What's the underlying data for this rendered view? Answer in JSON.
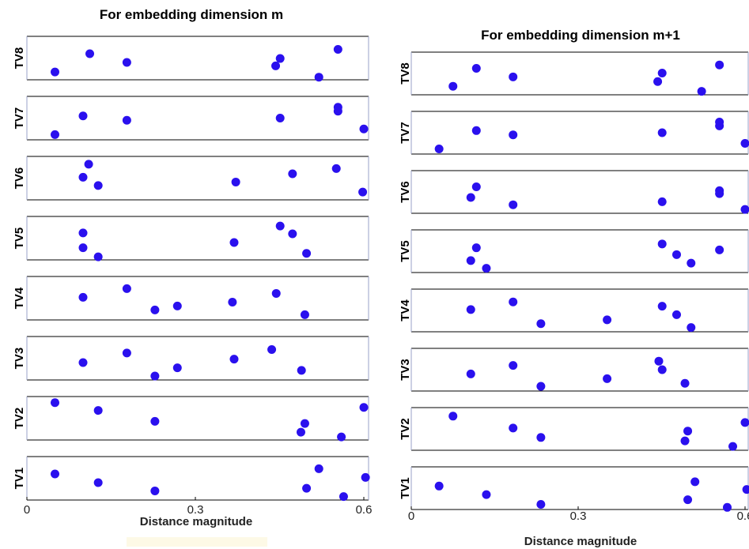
{
  "chart_data": [
    {
      "type": "scatter",
      "title": "For embedding dimension m",
      "xlabel": "Distance magnitude",
      "xlim": [
        0,
        0.6
      ],
      "xticks": [
        {
          "value": 0,
          "label": "0"
        },
        {
          "value": 0.3,
          "label": "0.3"
        },
        {
          "value": 0.6,
          "label": "0.6"
        }
      ],
      "rows": [
        {
          "name": "TV8",
          "points": [
            [
              0.05,
              0.18
            ],
            [
              0.112,
              0.6
            ],
            [
              0.178,
              0.4
            ],
            [
              0.443,
              0.32
            ],
            [
              0.451,
              0.49
            ],
            [
              0.52,
              0.06
            ],
            [
              0.554,
              0.7
            ]
          ]
        },
        {
          "name": "TV7",
          "points": [
            [
              0.05,
              0.12
            ],
            [
              0.1,
              0.55
            ],
            [
              0.178,
              0.45
            ],
            [
              0.451,
              0.5
            ],
            [
              0.554,
              0.75
            ],
            [
              0.554,
              0.66
            ],
            [
              0.6,
              0.25
            ]
          ]
        },
        {
          "name": "TV6",
          "points": [
            [
              0.1,
              0.52
            ],
            [
              0.11,
              0.82
            ],
            [
              0.127,
              0.33
            ],
            [
              0.372,
              0.41
            ],
            [
              0.473,
              0.6
            ],
            [
              0.551,
              0.72
            ],
            [
              0.598,
              0.18
            ]
          ]
        },
        {
          "name": "TV5",
          "points": [
            [
              0.1,
              0.28
            ],
            [
              0.1,
              0.62
            ],
            [
              0.127,
              0.07
            ],
            [
              0.369,
              0.4
            ],
            [
              0.451,
              0.78
            ],
            [
              0.473,
              0.6
            ],
            [
              0.498,
              0.15
            ]
          ]
        },
        {
          "name": "TV4",
          "points": [
            [
              0.1,
              0.52
            ],
            [
              0.178,
              0.72
            ],
            [
              0.228,
              0.23
            ],
            [
              0.268,
              0.32
            ],
            [
              0.366,
              0.41
            ],
            [
              0.444,
              0.61
            ],
            [
              0.495,
              0.12
            ]
          ]
        },
        {
          "name": "TV3",
          "points": [
            [
              0.1,
              0.4
            ],
            [
              0.178,
              0.62
            ],
            [
              0.228,
              0.09
            ],
            [
              0.268,
              0.28
            ],
            [
              0.369,
              0.48
            ],
            [
              0.436,
              0.7
            ],
            [
              0.489,
              0.22
            ]
          ]
        },
        {
          "name": "TV2",
          "points": [
            [
              0.05,
              0.86
            ],
            [
              0.127,
              0.68
            ],
            [
              0.228,
              0.43
            ],
            [
              0.495,
              0.38
            ],
            [
              0.488,
              0.18
            ],
            [
              0.56,
              0.07
            ],
            [
              0.6,
              0.75
            ]
          ]
        },
        {
          "name": "TV1",
          "points": [
            [
              0.05,
              0.6
            ],
            [
              0.127,
              0.4
            ],
            [
              0.228,
              0.21
            ],
            [
              0.52,
              0.72
            ],
            [
              0.498,
              0.27
            ],
            [
              0.603,
              0.52
            ],
            [
              0.564,
              0.08
            ]
          ]
        }
      ]
    },
    {
      "type": "scatter",
      "title": "For embedding dimension m+1",
      "xlabel": "Distance magnitude",
      "xlim": [
        0,
        0.6
      ],
      "xticks": [
        {
          "value": 0,
          "label": "0"
        },
        {
          "value": 0.3,
          "label": "0.3"
        },
        {
          "value": 0.6,
          "label": "0.6"
        }
      ],
      "rows": [
        {
          "name": "TV8",
          "points": [
            [
              0.075,
              0.2
            ],
            [
              0.117,
              0.62
            ],
            [
              0.183,
              0.42
            ],
            [
              0.443,
              0.31
            ],
            [
              0.451,
              0.51
            ],
            [
              0.522,
              0.08
            ],
            [
              0.554,
              0.7
            ]
          ]
        },
        {
          "name": "TV7",
          "points": [
            [
              0.05,
              0.12
            ],
            [
              0.117,
              0.55
            ],
            [
              0.183,
              0.45
            ],
            [
              0.451,
              0.5
            ],
            [
              0.554,
              0.75
            ],
            [
              0.554,
              0.66
            ],
            [
              0.6,
              0.25
            ]
          ]
        },
        {
          "name": "TV6",
          "points": [
            [
              0.107,
              0.37
            ],
            [
              0.117,
              0.62
            ],
            [
              0.183,
              0.2
            ],
            [
              0.451,
              0.27
            ],
            [
              0.554,
              0.53
            ],
            [
              0.554,
              0.46
            ],
            [
              0.6,
              0.09
            ]
          ]
        },
        {
          "name": "TV5",
          "points": [
            [
              0.107,
              0.28
            ],
            [
              0.117,
              0.58
            ],
            [
              0.135,
              0.1
            ],
            [
              0.451,
              0.67
            ],
            [
              0.477,
              0.42
            ],
            [
              0.503,
              0.22
            ],
            [
              0.554,
              0.53
            ]
          ]
        },
        {
          "name": "TV4",
          "points": [
            [
              0.107,
              0.52
            ],
            [
              0.183,
              0.7
            ],
            [
              0.233,
              0.19
            ],
            [
              0.352,
              0.28
            ],
            [
              0.451,
              0.6
            ],
            [
              0.477,
              0.4
            ],
            [
              0.503,
              0.1
            ]
          ]
        },
        {
          "name": "TV3",
          "points": [
            [
              0.107,
              0.4
            ],
            [
              0.183,
              0.6
            ],
            [
              0.233,
              0.11
            ],
            [
              0.352,
              0.29
            ],
            [
              0.445,
              0.7
            ],
            [
              0.451,
              0.5
            ],
            [
              0.492,
              0.18
            ]
          ]
        },
        {
          "name": "TV2",
          "points": [
            [
              0.075,
              0.8
            ],
            [
              0.183,
              0.52
            ],
            [
              0.233,
              0.3
            ],
            [
              0.497,
              0.45
            ],
            [
              0.492,
              0.22
            ],
            [
              0.578,
              0.09
            ],
            [
              0.6,
              0.65
            ]
          ]
        },
        {
          "name": "TV1",
          "points": [
            [
              0.05,
              0.55
            ],
            [
              0.135,
              0.35
            ],
            [
              0.233,
              0.12
            ],
            [
              0.51,
              0.65
            ],
            [
              0.497,
              0.23
            ],
            [
              0.603,
              0.47
            ],
            [
              0.568,
              0.05
            ]
          ]
        }
      ]
    }
  ],
  "colors": {
    "marker": "#2a10ee",
    "axis": "#000000",
    "frame": "#9aa0c8",
    "highlight": "#fdf9e6"
  }
}
